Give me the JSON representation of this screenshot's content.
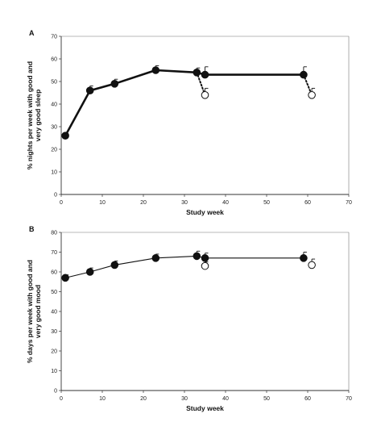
{
  "chart_data": [
    {
      "panel": "A",
      "type": "line",
      "xlabel": "Study week",
      "ylabel": [
        "% nights per week with good and",
        "very good sleep"
      ],
      "xlim": [
        0,
        70
      ],
      "ylim": [
        0,
        70
      ],
      "xticks": [
        0,
        10,
        20,
        30,
        40,
        50,
        60,
        70
      ],
      "yticks": [
        0,
        10,
        20,
        30,
        40,
        50,
        60,
        70
      ],
      "grid": false,
      "series": [
        {
          "marker": "filled-circle",
          "line": "solid-thick",
          "points": [
            {
              "x": 1,
              "y": 26,
              "err": 1
            },
            {
              "x": 7,
              "y": 46,
              "err": 2
            },
            {
              "x": 13,
              "y": 49,
              "err": 2
            },
            {
              "x": 23,
              "y": 55,
              "err": 2
            },
            {
              "x": 33,
              "y": 54,
              "err": 2
            },
            {
              "x": 35,
              "y": 53,
              "err": 3.5
            },
            {
              "x": 59,
              "y": 53,
              "err": 3.5
            }
          ]
        },
        {
          "marker": "open-circle",
          "points": [
            {
              "x": 35,
              "y": 44,
              "err": 3
            },
            {
              "x": 61,
              "y": 44,
              "err": 3
            }
          ]
        }
      ],
      "connectors": [
        {
          "from": [
            33,
            54
          ],
          "to": [
            35,
            44
          ],
          "style": "dotted"
        },
        {
          "from": [
            59,
            53
          ],
          "to": [
            61,
            44
          ],
          "style": "dotted"
        }
      ]
    },
    {
      "panel": "B",
      "type": "line",
      "xlabel": "Study week",
      "ylabel": [
        "% days per week with good and",
        "very good mood"
      ],
      "xlim": [
        0,
        70
      ],
      "ylim": [
        0,
        80
      ],
      "xticks": [
        0,
        10,
        20,
        30,
        40,
        50,
        60,
        70
      ],
      "yticks": [
        0,
        10,
        20,
        30,
        40,
        50,
        60,
        70,
        80
      ],
      "grid": false,
      "series": [
        {
          "marker": "filled-circle",
          "line": "solid-thin",
          "points": [
            {
              "x": 1,
              "y": 57,
              "err": 1.5
            },
            {
              "x": 7,
              "y": 60,
              "err": 2
            },
            {
              "x": 13,
              "y": 63.5,
              "err": 2
            },
            {
              "x": 23,
              "y": 67,
              "err": 2
            },
            {
              "x": 33,
              "y": 68,
              "err": 2.5
            },
            {
              "x": 35,
              "y": 67,
              "err": 2.5
            },
            {
              "x": 59,
              "y": 67,
              "err": 3
            }
          ]
        },
        {
          "marker": "open-circle",
          "points": [
            {
              "x": 35,
              "y": 63,
              "err": 2
            },
            {
              "x": 61,
              "y": 63.5,
              "err": 3
            }
          ]
        }
      ],
      "connectors": []
    }
  ],
  "colors": {
    "ink": "#111111",
    "axis": "#333333",
    "frame": "#777777"
  }
}
